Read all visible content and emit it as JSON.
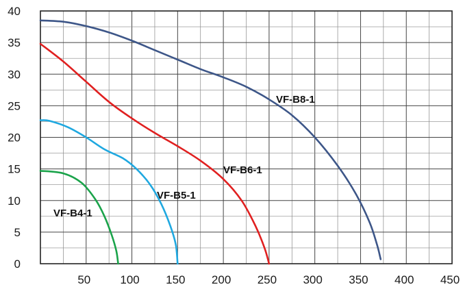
{
  "chart_data": {
    "type": "line",
    "title": "",
    "xlabel": "",
    "ylabel": "",
    "xlim": [
      0,
      450
    ],
    "ylim": [
      0,
      40
    ],
    "grid": true,
    "legend": "none (inline series labels)",
    "x_ticks": [
      50,
      100,
      150,
      200,
      250,
      300,
      350,
      400,
      450
    ],
    "y_ticks": [
      0,
      5,
      10,
      15,
      20,
      25,
      30,
      35,
      40
    ],
    "series": [
      {
        "name": "VF-B4-1",
        "color": "#1aa34a",
        "points": [
          [
            0,
            14.7
          ],
          [
            25,
            14.3
          ],
          [
            45,
            12.8
          ],
          [
            60,
            10.2
          ],
          [
            70,
            7.5
          ],
          [
            78,
            4.5
          ],
          [
            83,
            2
          ],
          [
            85,
            0
          ]
        ]
      },
      {
        "name": "VF-B5-1",
        "color": "#1fa8e0",
        "points": [
          [
            0,
            22.7
          ],
          [
            10,
            22.6
          ],
          [
            30,
            21.6
          ],
          [
            50,
            20
          ],
          [
            70,
            18.1
          ],
          [
            90,
            16.7
          ],
          [
            105,
            15
          ],
          [
            120,
            12.5
          ],
          [
            132,
            9.5
          ],
          [
            142,
            6
          ],
          [
            148,
            3
          ],
          [
            150,
            0
          ]
        ]
      },
      {
        "name": "VF-B6-1",
        "color": "#e02020",
        "points": [
          [
            0,
            34.8
          ],
          [
            25,
            32
          ],
          [
            50,
            28.8
          ],
          [
            75,
            25.6
          ],
          [
            100,
            23
          ],
          [
            125,
            20.7
          ],
          [
            150,
            18.6
          ],
          [
            175,
            16.3
          ],
          [
            200,
            13.4
          ],
          [
            220,
            10
          ],
          [
            235,
            6
          ],
          [
            245,
            2.5
          ],
          [
            250,
            0
          ]
        ]
      },
      {
        "name": "VF-B8-1",
        "color": "#3d5688",
        "points": [
          [
            0,
            38.5
          ],
          [
            25,
            38.3
          ],
          [
            50,
            37.6
          ],
          [
            75,
            36.6
          ],
          [
            100,
            35.3
          ],
          [
            125,
            33.8
          ],
          [
            150,
            32.3
          ],
          [
            175,
            30.8
          ],
          [
            200,
            29.5
          ],
          [
            225,
            28
          ],
          [
            250,
            26
          ],
          [
            275,
            23.5
          ],
          [
            300,
            20
          ],
          [
            325,
            15.5
          ],
          [
            345,
            11
          ],
          [
            360,
            6.5
          ],
          [
            368,
            3
          ],
          [
            372,
            0.7
          ]
        ]
      }
    ]
  },
  "labels": {
    "b4": "VF-B4-1",
    "b5": "VF-B5-1",
    "b6": "VF-B6-1",
    "b8": "VF-B8-1"
  }
}
